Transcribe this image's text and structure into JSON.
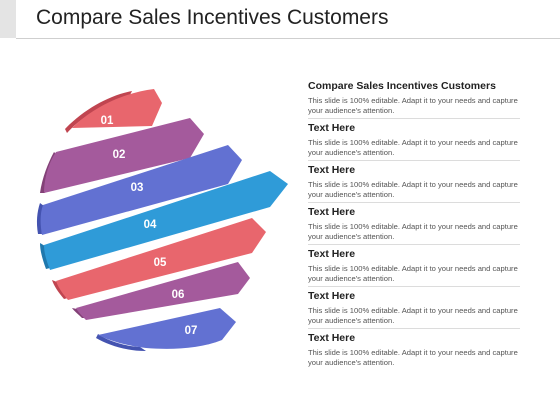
{
  "page": {
    "title": "Compare Sales Incentives Customers"
  },
  "stripes": [
    {
      "label": "01",
      "color": "#e8666d"
    },
    {
      "label": "02",
      "color": "#a45a9c"
    },
    {
      "label": "03",
      "color": "#6271d2"
    },
    {
      "label": "04",
      "color": "#2f9bd8"
    },
    {
      "label": "05",
      "color": "#e8666d"
    },
    {
      "label": "06",
      "color": "#a45a9c"
    },
    {
      "label": "07",
      "color": "#6271d2"
    }
  ],
  "blocks": [
    {
      "title": "Compare Sales Incentives Customers",
      "body": "This slide is 100% editable. Adapt it to your needs and capture your audience's attention."
    },
    {
      "title": "Text Here",
      "body": "This slide is 100% editable. Adapt it to your needs and capture your audience's attention."
    },
    {
      "title": "Text Here",
      "body": "This slide is 100% editable. Adapt it to your needs and capture your audience's attention."
    },
    {
      "title": "Text Here",
      "body": "This slide is 100% editable. Adapt it to your needs and capture your audience's attention."
    },
    {
      "title": "Text Here",
      "body": "This slide is 100% editable. Adapt it to your needs and capture your audience's attention."
    },
    {
      "title": "Text Here",
      "body": "This slide is 100% editable. Adapt it to your needs and capture your audience's attention."
    },
    {
      "title": "Text Here",
      "body": "This slide is 100% editable. Adapt it to your needs and capture your audience's attention."
    }
  ]
}
